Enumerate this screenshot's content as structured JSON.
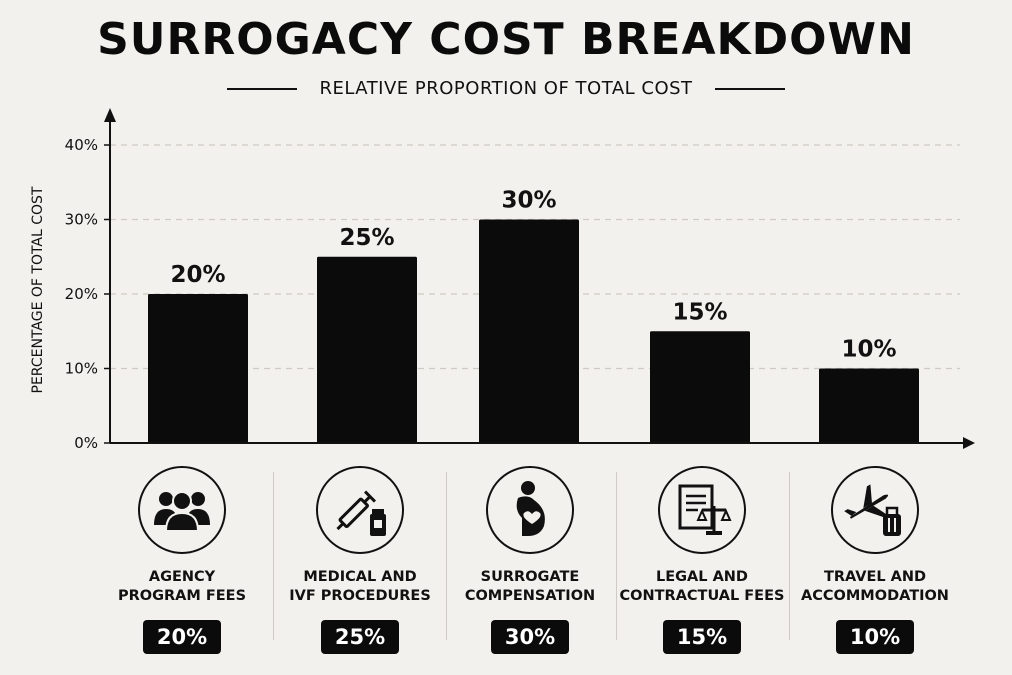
{
  "header": {
    "title": "SURROGACY COST BREAKDOWN",
    "subtitle": "RELATIVE PROPORTION OF TOTAL COST"
  },
  "chart_data": {
    "type": "bar",
    "title": "SURROGACY COST BREAKDOWN",
    "subtitle": "RELATIVE PROPORTION OF TOTAL COST",
    "ylabel": "PERCENTAGE OF TOTAL COST",
    "xlabel": "",
    "ylim": [
      0,
      40
    ],
    "yticks": [
      0,
      10,
      20,
      30,
      40
    ],
    "ytick_labels": [
      "0%",
      "10%",
      "20%",
      "30%",
      "40%"
    ],
    "grid": "horizontal dashed",
    "categories": [
      "AGENCY PROGRAM FEES",
      "MEDICAL AND IVF PROCEDURES",
      "SURROGATE COMPENSATION",
      "LEGAL AND CONTRACTUAL FEES",
      "TRAVEL AND ACCOMMODATION"
    ],
    "values": [
      20,
      25,
      30,
      15,
      10
    ],
    "data_labels": [
      "20%",
      "25%",
      "30%",
      "15%",
      "10%"
    ],
    "bar_color": "#0b0b0b"
  },
  "legend_items": [
    {
      "line1": "AGENCY",
      "line2": "PROGRAM FEES",
      "badge": "20%",
      "icon": "people-group-icon"
    },
    {
      "line1": "MEDICAL AND",
      "line2": "IVF PROCEDURES",
      "badge": "25%",
      "icon": "syringe-vial-icon"
    },
    {
      "line1": "SURROGATE",
      "line2": "COMPENSATION",
      "badge": "30%",
      "icon": "pregnant-woman-icon"
    },
    {
      "line1": "LEGAL AND",
      "line2": "CONTRACTUAL FEES",
      "badge": "15%",
      "icon": "legal-document-scales-icon"
    },
    {
      "line1": "TRAVEL AND",
      "line2": "ACCOMMODATION",
      "badge": "10%",
      "icon": "airplane-luggage-icon"
    }
  ]
}
